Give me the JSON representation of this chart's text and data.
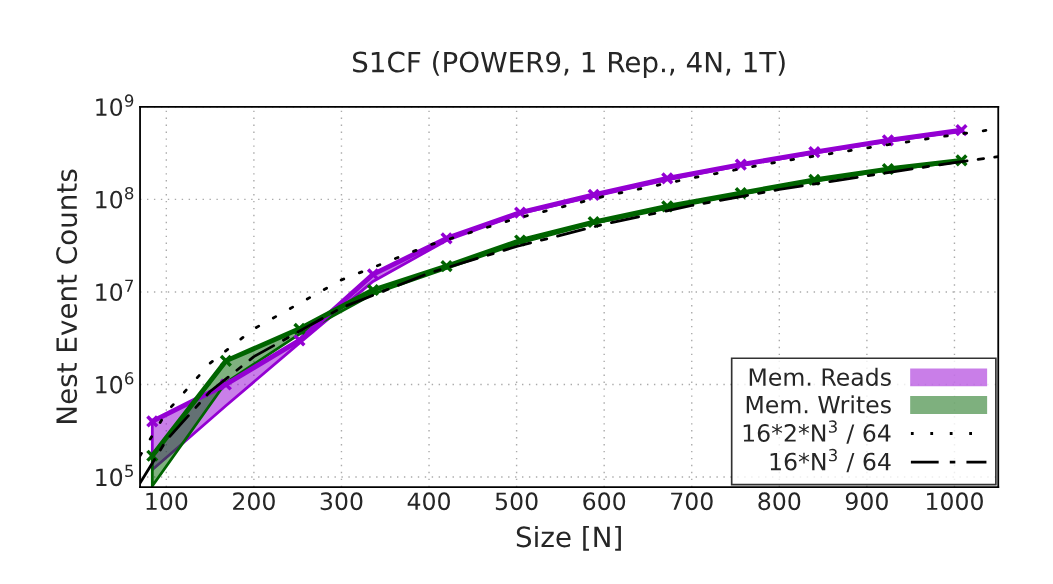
{
  "chart_data": {
    "type": "line",
    "title": "S1CF (POWER9, 1 Rep., 4N, 1T)",
    "xlabel": "Size [N]",
    "ylabel": "Nest Event Counts",
    "x": [
      84,
      168,
      252,
      336,
      420,
      504,
      588,
      672,
      756,
      840,
      924,
      1008
    ],
    "series": [
      {
        "name": "Mem. Reads",
        "color": "#9400d3",
        "marker": "cross",
        "values": [
          400000,
          1000000,
          3000000,
          15500000,
          38000000,
          72000000,
          112000000,
          169000000,
          238000000,
          324000000,
          435000000,
          560000000
        ],
        "lower": [
          120000,
          590000,
          2800000,
          13000000,
          36000000,
          70000000,
          108000000,
          163000000,
          232000000,
          316000000,
          425000000,
          540000000
        ],
        "upper": [
          400000,
          1000000,
          3000000,
          15500000,
          38000000,
          72000000,
          112000000,
          169000000,
          238000000,
          324000000,
          435000000,
          560000000
        ]
      },
      {
        "name": "Mem. Writes",
        "color": "#006400",
        "marker": "cross",
        "values": [
          170000,
          1800000,
          4000000,
          10500000,
          19000000,
          36000000,
          57000000,
          84000000,
          117000000,
          163000000,
          213000000,
          264000000
        ],
        "lower": [
          80000,
          1050000,
          3500000,
          9500000,
          18000000,
          34000000,
          55000000,
          80000000,
          113000000,
          157000000,
          207000000,
          256000000
        ],
        "upper": [
          170000,
          1800000,
          4000000,
          10500000,
          19000000,
          36000000,
          57000000,
          84000000,
          117000000,
          163000000,
          213000000,
          264000000
        ]
      },
      {
        "name": "16*2*N$^{3}$ / 64",
        "color": "#000000",
        "line_style": "dotted",
        "marker": "none",
        "x": [
          70,
          100,
          150,
          200,
          300,
          400,
          500,
          600,
          700,
          800,
          900,
          1000,
          1050
        ],
        "values": [
          170000,
          500000,
          1700000,
          4000000,
          13500000,
          32000000,
          62500000,
          108000000,
          170000000,
          256000000,
          360000000,
          500000000,
          580000000
        ]
      },
      {
        "name": "16*N$^{3}$ / 64",
        "color": "#000000",
        "line_style": "dashdot",
        "marker": "none",
        "x": [
          70,
          100,
          150,
          200,
          300,
          400,
          500,
          600,
          700,
          800,
          900,
          1000,
          1050
        ],
        "values": [
          86000,
          250000,
          840000,
          2000000,
          6750000,
          16000000,
          31000000,
          54000000,
          86000000,
          128000000,
          180000000,
          250000000,
          290000000
        ]
      }
    ],
    "log": "y",
    "xlim": [
      70,
      1050
    ],
    "xticks": [
      100,
      200,
      300,
      400,
      500,
      600,
      700,
      800,
      900,
      1000
    ],
    "ylim": [
      78000,
      1000000000
    ],
    "yticks": [
      {
        "value": 100000,
        "label": "10$^{5}$"
      },
      {
        "value": 1000000,
        "label": "10$^{6}$"
      },
      {
        "value": 10000000,
        "label": "10$^{7}$"
      },
      {
        "value": 100000000,
        "label": "10$^{8}$"
      },
      {
        "value": 1000000000,
        "label": "10$^{9}$"
      }
    ],
    "grid": true,
    "legend": "bottom right"
  }
}
